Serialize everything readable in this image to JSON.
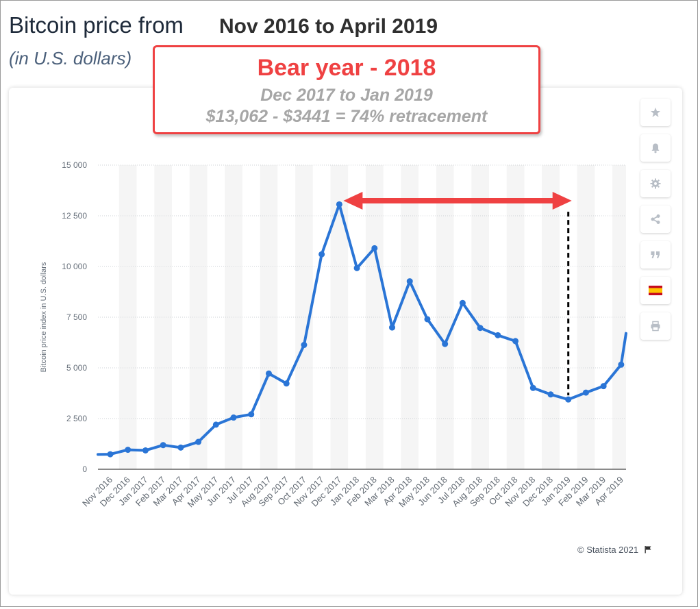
{
  "header": {
    "title_part1": "Bitcoin price from",
    "title_part2": "Nov 2016 to April 2019",
    "subtitle": "(in U.S. dollars)"
  },
  "annotation": {
    "title": "Bear year - 2018",
    "line1": "Dec 2017 to Jan 2019",
    "line2": "$13,062 - $3441 = 74% retracement",
    "color": "#ef4142"
  },
  "sidebar": {
    "buttons": [
      {
        "name": "star-icon"
      },
      {
        "name": "bell-icon"
      },
      {
        "name": "gear-icon"
      },
      {
        "name": "share-icon"
      },
      {
        "name": "quote-icon"
      },
      {
        "name": "flag-spain-icon"
      },
      {
        "name": "print-icon"
      }
    ]
  },
  "credit": "© Statista 2021",
  "chart_data": {
    "type": "line",
    "ylabel": "Bitcoin price index in U.S. dollars",
    "ylim": [
      0,
      15000
    ],
    "yticks": [
      0,
      2500,
      5000,
      7500,
      10000,
      12500,
      15000
    ],
    "ytick_labels": [
      "0",
      "2 500",
      "5 000",
      "7 500",
      "10 000",
      "12 500",
      "15 000"
    ],
    "grid": true,
    "categories": [
      "Nov 2016",
      "Dec 2016",
      "Jan 2017",
      "Feb 2017",
      "Mar 2017",
      "Apr 2017",
      "May 2017",
      "Jun 2017",
      "Jul 2017",
      "Aug 2017",
      "Sep 2017",
      "Oct 2017",
      "Nov 2017",
      "Dec 2017",
      "Jan 2018",
      "Feb 2018",
      "Mar 2018",
      "Apr 2018",
      "May 2018",
      "Jun 2018",
      "Jul 2018",
      "Aug 2018",
      "Sep 2018",
      "Oct 2018",
      "Nov 2018",
      "Dec 2018",
      "Jan 2019",
      "Feb 2019",
      "Mar 2019",
      "Apr 2019"
    ],
    "series": [
      {
        "color": "#2a75d6",
        "values": [
          740,
          960,
          930,
          1190,
          1070,
          1350,
          2200,
          2550,
          2710,
          4720,
          4230,
          6130,
          10600,
          13062,
          9920,
          10900,
          6990,
          9270,
          7400,
          6180,
          8200,
          6970,
          6610,
          6320,
          4010,
          3690,
          3441,
          3780,
          4100,
          5160
        ]
      }
    ],
    "extra_points": {
      "before_first_value": 730,
      "after_last_value": 6700
    },
    "annotations": {
      "arrow_from": "Dec 2017",
      "arrow_to": "Jan 2019",
      "arrow_color": "#ef4142",
      "dashed_marker_category": "Jan 2019",
      "dashed_marker_value": 12700
    }
  }
}
